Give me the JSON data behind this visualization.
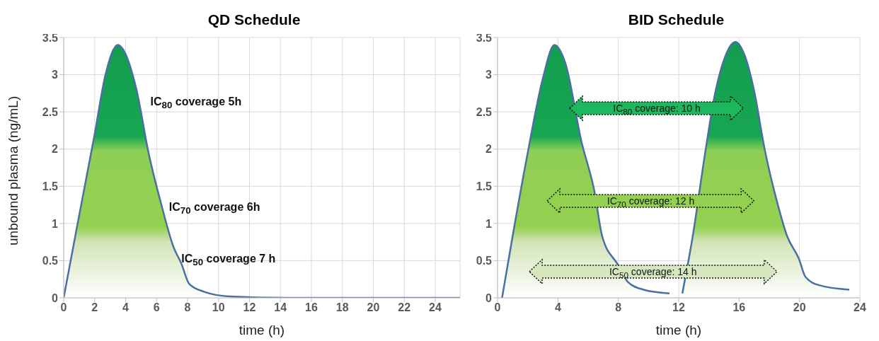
{
  "chart_data": [
    {
      "type": "area",
      "title": "QD Schedule",
      "xlabel": "time (h)",
      "ylabel": "unbound plasma (ng/mL)",
      "xlim": [
        0,
        25.6
      ],
      "xticks": [
        0,
        2,
        4,
        6,
        8,
        10,
        12,
        14,
        16,
        18,
        20,
        22,
        24
      ],
      "ylim": [
        0,
        3.5
      ],
      "yticks": [
        0,
        0.5,
        1,
        1.5,
        2,
        2.5,
        3,
        3.5
      ],
      "grid": true,
      "marker": "none",
      "series": [
        {
          "color": "#4a6fa5",
          "x": [
            0,
            0.9,
            2.0,
            2.7,
            3.5,
            3.8,
            4.7,
            5.5,
            6.3,
            7.1,
            7.6,
            8.1,
            9.1,
            10.7,
            14.3,
            20,
            25.6
          ],
          "values": [
            0,
            1.0,
            2.2,
            3.0,
            3.4,
            3.35,
            2.8,
            1.93,
            1.26,
            0.68,
            0.46,
            0.19,
            0.08,
            0.02,
            0,
            0,
            0
          ]
        }
      ],
      "annotations": [
        "IC$_{80}$ coverage 5h",
        "IC$_{70}$ coverage 6h",
        "IC$_{50}$ coverage 7 h"
      ]
    },
    {
      "type": "area",
      "title": "BID Schedule",
      "xlabel": "time (h)",
      "xlim": [
        0,
        24
      ],
      "xticks": [
        0,
        4,
        8,
        12,
        16,
        20,
        24
      ],
      "ylim": [
        0,
        3.5
      ],
      "yticks": [
        0,
        0.5,
        1,
        1.5,
        2,
        2.5,
        3,
        3.5
      ],
      "grid": true,
      "marker": "none",
      "series": [
        {
          "color": "#4a6fa5",
          "x": [
            0.3,
            1.0,
            2.0,
            3.0,
            3.77,
            4.5,
            5.56,
            6.42,
            6.93,
            7.96,
            8.65,
            9.67,
            11.39
          ],
          "values": [
            0,
            0.83,
            1.95,
            2.95,
            3.4,
            3.15,
            2.1,
            1.43,
            0.83,
            0.45,
            0.21,
            0.11,
            0.06
          ]
        },
        {
          "color": "#4a6fa5",
          "x": [
            12.24,
            12.93,
            13.7,
            14.4,
            15.0,
            15.75,
            16.35,
            17.0,
            17.7,
            18.58,
            19.18,
            19.95,
            20.4,
            21.3,
            23.3
          ],
          "values": [
            0.06,
            0.83,
            1.88,
            2.74,
            3.2,
            3.44,
            3.27,
            2.78,
            1.99,
            1.24,
            0.83,
            0.53,
            0.28,
            0.17,
            0.11
          ]
        }
      ],
      "annotations": [
        "IC$_{80}$ coverage: 10 h",
        "IC$_{70}$ coverage: 12 h",
        "IC$_{50}$ coverage: 14 h"
      ]
    }
  ]
}
